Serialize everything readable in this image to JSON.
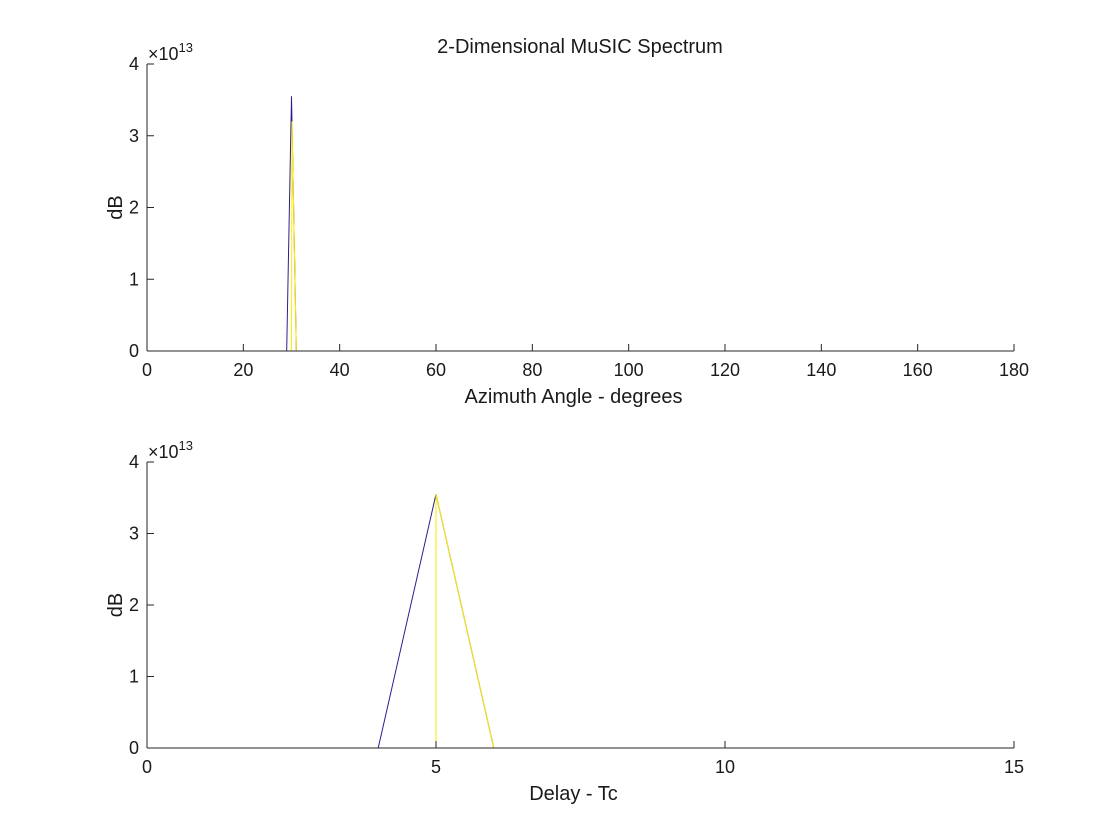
{
  "figure": {
    "title": "2-Dimensional MuSIC Spectrum"
  },
  "chart_data": [
    {
      "type": "line",
      "title": "2-Dimensional MuSIC Spectrum",
      "xlabel": "Azimuth Angle - degrees",
      "ylabel": "dB",
      "xlim": [
        0,
        180
      ],
      "ylim": [
        0,
        40000000000000.0
      ],
      "xticks": [
        0,
        20,
        40,
        60,
        80,
        100,
        120,
        140,
        160,
        180
      ],
      "yticks": [
        0,
        1,
        2,
        3,
        4
      ],
      "xtick_labels": [
        "0",
        "20",
        "40",
        "60",
        "80",
        "100",
        "120",
        "140",
        "160",
        "180"
      ],
      "ytick_labels": [
        "0",
        "1",
        "2",
        "3",
        "4"
      ],
      "y_exponent_base": "×10",
      "y_exponent_power": "13",
      "grid": false,
      "series": [
        {
          "color": "#2a1f8f",
          "x": [
            0,
            29,
            30,
            31,
            180
          ],
          "y": [
            0,
            0,
            35500000000000.0,
            0,
            0
          ]
        },
        {
          "color": "#ffee00",
          "x": [
            0,
            30,
            30.1,
            31,
            180
          ],
          "y": [
            0,
            0,
            32000000000000.0,
            0,
            0
          ]
        }
      ]
    },
    {
      "type": "line",
      "title": "",
      "xlabel": "Delay - Tc",
      "ylabel": "dB",
      "xlim": [
        0,
        15
      ],
      "ylim": [
        0,
        40000000000000.0
      ],
      "xticks": [
        0,
        5,
        10,
        15
      ],
      "yticks": [
        0,
        1,
        2,
        3,
        4
      ],
      "xtick_labels": [
        "0",
        "5",
        "10",
        "15"
      ],
      "ytick_labels": [
        "0",
        "1",
        "2",
        "3",
        "4"
      ],
      "y_exponent_base": "×10",
      "y_exponent_power": "13",
      "grid": false,
      "series": [
        {
          "color": "#2a1f8f",
          "x": [
            0,
            4,
            5,
            6,
            15
          ],
          "y": [
            0,
            0,
            35500000000000.0,
            0,
            0
          ]
        },
        {
          "color": "#ffee00",
          "x": [
            0,
            5,
            5,
            6,
            15
          ],
          "y": [
            0,
            0,
            35500000000000.0,
            0,
            0
          ]
        }
      ]
    }
  ]
}
